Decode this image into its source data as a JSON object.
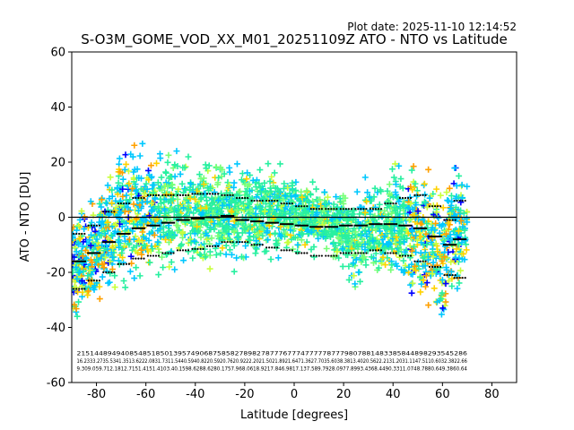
{
  "plot_date": "Plot date: 2025-11-10 12:14:52",
  "chart_data": {
    "type": "scatter",
    "title": "S-O3M_GOME_VOD_XX_M01_20251109Z ATO - NTO vs Latitude",
    "xlabel": "Latitude [degrees]",
    "ylabel": "ATO - NTO [DU]",
    "xlim": [
      -90,
      90
    ],
    "ylim": [
      -60,
      60
    ],
    "xticks": [
      -80,
      -60,
      -40,
      -20,
      0,
      20,
      40,
      60,
      80
    ],
    "yticks": [
      -60,
      -40,
      -20,
      0,
      20,
      40,
      60
    ],
    "grid": false,
    "legend": "none",
    "zero_line": 0,
    "point_colors": [
      "#00c8ff",
      "#28f0a0",
      "#78ff78",
      "#c8ff3c",
      "#ffd200",
      "#ffa000",
      "#0000ff",
      "#3c8cff"
    ],
    "scatter_envelope": {
      "lat": [
        -90,
        -80,
        -70,
        -65,
        -60,
        -50,
        -40,
        -30,
        -20,
        -10,
        0,
        10,
        20,
        25,
        30,
        40,
        50,
        55,
        60,
        65,
        70
      ],
      "upper": [
        8,
        12,
        35,
        35,
        32,
        28,
        26,
        24,
        22,
        24,
        18,
        12,
        14,
        12,
        16,
        22,
        25,
        20,
        18,
        30,
        20
      ],
      "lower": [
        -40,
        -38,
        -35,
        -30,
        -28,
        -26,
        -24,
        -20,
        -20,
        -18,
        -16,
        -14,
        -20,
        -30,
        -25,
        -26,
        -35,
        -40,
        -45,
        -40,
        -30
      ]
    },
    "mean_lat": [
      -87,
      -81,
      -75,
      -69,
      -63,
      -57,
      -51,
      -45,
      -39,
      -33,
      -27,
      -21,
      -15,
      -9,
      -3,
      3,
      9,
      15,
      21,
      27,
      33,
      39,
      45,
      51,
      57,
      63,
      67
    ],
    "mean": [
      -16,
      -13,
      -9,
      -6,
      -4,
      -3,
      -2,
      -1,
      -0.5,
      0,
      0.5,
      -1,
      -1.5,
      -2,
      -2.5,
      -3,
      -3.5,
      -3.5,
      -3,
      -3,
      -2.5,
      -2.5,
      -3,
      -4,
      -7,
      -10,
      -8
    ],
    "std_upper": [
      -6,
      -3,
      2,
      5,
      7,
      8,
      8,
      8,
      8.5,
      8.5,
      8,
      7,
      6,
      6,
      5,
      4,
      3,
      3,
      3,
      3,
      3,
      5,
      7,
      8,
      4,
      -1,
      6
    ],
    "std_lower": [
      -26,
      -23,
      -20,
      -17,
      -15,
      -14,
      -13,
      -12,
      -11.5,
      -10.5,
      -9,
      -9,
      -10,
      -11,
      -12,
      -13,
      -14,
      -14,
      -13,
      -13,
      -12,
      -13,
      -14,
      -16,
      -18,
      -21,
      -22
    ],
    "stats_rows": [
      "21514489494085485185013957490687585827898278777677747777787779807881483385844898293545286",
      "16.2333.2735.5341.3513.6222.0831.7311.5440.5940.8220.5920.7620.9222.2021.5021.8921.6471.3627.7035.6038.3813.4020.5622.2131.2031.1147.5110.6032.3822.66",
      "9.309.059.712.1812.7151.4151.4103.40.1598.6288.6280.1757.968.0618.9217.846.9817.137.589.7928.0977.8993.4368.4490.3311.0748.7880.649.3860.64"
    ]
  }
}
